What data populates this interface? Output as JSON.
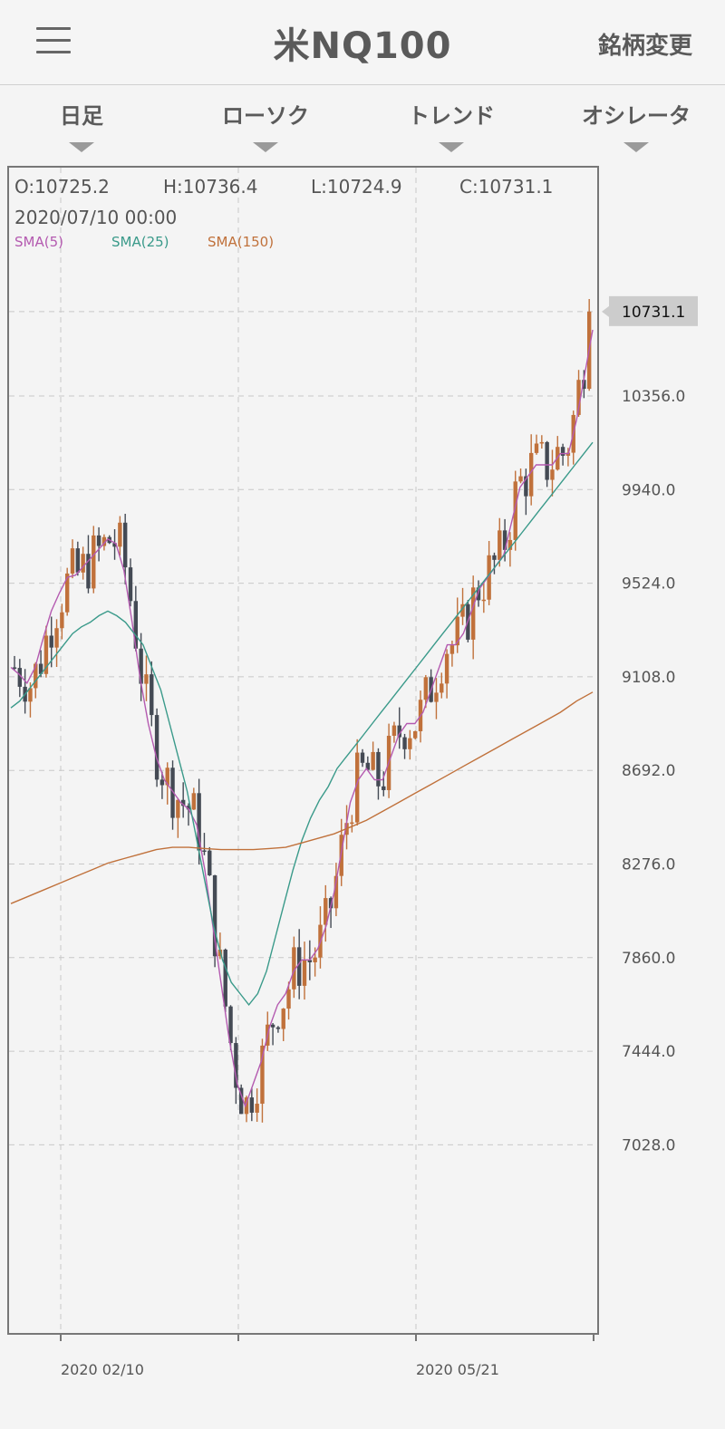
{
  "header": {
    "title": "米NQ100",
    "change_label": "銘柄変更"
  },
  "tabs": [
    {
      "label": "日足"
    },
    {
      "label": "ローソク"
    },
    {
      "label": "トレンド"
    },
    {
      "label": "オシレータ"
    }
  ],
  "ohlc": {
    "open": "O:10725.2",
    "high": "H:10736.4",
    "low": "L:10724.9",
    "close": "C:10731.1",
    "datetime": "2020/07/10 00:00"
  },
  "legend": [
    {
      "name": "SMA(5)",
      "color": "#b45ab0"
    },
    {
      "name": "SMA(25)",
      "color": "#3a9a8a"
    },
    {
      "name": "SMA(150)",
      "color": "#c0713b"
    }
  ],
  "colors": {
    "up": "#c0713b",
    "down": "#444a54",
    "grid": "#c8c8c8",
    "price_tag": "#cccccc"
  },
  "chart_data": {
    "type": "candlestick",
    "ylim": [
      6570,
      10970
    ],
    "y_ticks": [
      "10356.0",
      "9940.0",
      "9524.0",
      "9108.0",
      "8692.0",
      "8276.0",
      "7860.0",
      "7444.0",
      "7028.0"
    ],
    "x_ticks": [
      "2020 02/10",
      "2020 05/21"
    ],
    "last_price": "10731.1",
    "series": [
      {
        "name": "SMA(5)",
        "values": [
          9150,
          9120,
          9080,
          9150,
          9280,
          9400,
          9480,
          9550,
          9560,
          9600,
          9640,
          9680,
          9720,
          9700,
          9580,
          9350,
          9100,
          8900,
          8750,
          8650,
          8600,
          8550,
          8520,
          8450,
          8250,
          8000,
          7750,
          7500,
          7300,
          7200,
          7300,
          7400,
          7550,
          7650,
          7700,
          7800,
          7850,
          7850,
          7900,
          8000,
          8150,
          8350,
          8550,
          8650,
          8700,
          8650,
          8650,
          8750,
          8850,
          8900,
          8900,
          8950,
          9050,
          9150,
          9250,
          9250,
          9300,
          9400,
          9500,
          9550,
          9600,
          9650,
          9800,
          9950,
          10000,
          10050,
          10050,
          10050,
          10100,
          10100,
          10250,
          10450,
          10650
        ]
      },
      {
        "name": "SMA(25)",
        "values": [
          8970,
          9000,
          9050,
          9100,
          9150,
          9200,
          9250,
          9300,
          9330,
          9350,
          9380,
          9400,
          9380,
          9350,
          9300,
          9250,
          9150,
          9050,
          8900,
          8750,
          8600,
          8400,
          8200,
          8000,
          7850,
          7750,
          7700,
          7650,
          7700,
          7800,
          7950,
          8100,
          8250,
          8380,
          8480,
          8560,
          8620,
          8700,
          8750,
          8800,
          8850,
          8900,
          8950,
          9000,
          9050,
          9100,
          9150,
          9200,
          9250,
          9300,
          9350,
          9400,
          9450,
          9500,
          9550,
          9600,
          9650,
          9700,
          9750,
          9800,
          9850,
          9900,
          9950,
          10000,
          10050,
          10100,
          10150
        ]
      },
      {
        "name": "SMA(150)",
        "values": [
          8100,
          8130,
          8160,
          8190,
          8220,
          8250,
          8280,
          8300,
          8320,
          8340,
          8350,
          8350,
          8345,
          8340,
          8340,
          8340,
          8345,
          8350,
          8370,
          8390,
          8410,
          8440,
          8470,
          8510,
          8550,
          8590,
          8630,
          8670,
          8710,
          8750,
          8790,
          8830,
          8870,
          8910,
          8950,
          9000,
          9040
        ]
      }
    ]
  }
}
